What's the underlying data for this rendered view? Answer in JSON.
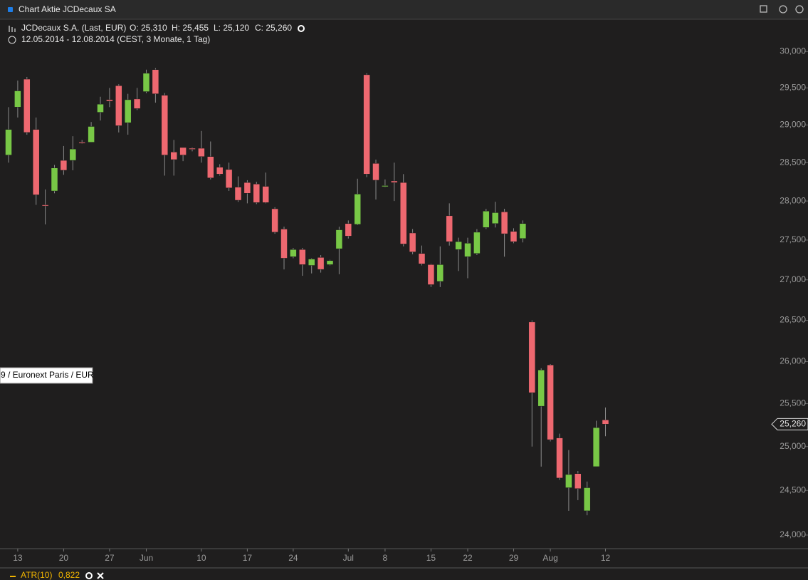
{
  "window_title": "Chart Aktie JCDecaux SA",
  "exchange_label": "9 / Euronext Paris / EUR",
  "indicator": {
    "name": "ATR(10)",
    "value": "0,822"
  },
  "chart_data": {
    "type": "candlestick",
    "title": "JCDecaux S.A. (Last, EUR)",
    "ohlc_labels": [
      "O: 25,310",
      "H: 25,455",
      "L: 25,120",
      "C: 25,260"
    ],
    "subtitle": "12.05.2014 - 12.08.2014 (CEST, 3 Monate, 1 Tag)",
    "categories": [
      null,
      "13",
      null,
      null,
      null,
      null,
      "20",
      null,
      null,
      null,
      null,
      "27",
      null,
      null,
      null,
      "Jun",
      null,
      null,
      null,
      null,
      null,
      "10",
      null,
      null,
      null,
      null,
      "17",
      null,
      null,
      null,
      null,
      "24",
      null,
      null,
      null,
      null,
      null,
      "Jul",
      null,
      null,
      null,
      "8",
      null,
      null,
      null,
      null,
      "15",
      null,
      null,
      null,
      "22",
      null,
      null,
      null,
      null,
      "29",
      null,
      null,
      null,
      "Aug",
      null,
      null,
      null,
      null,
      null,
      "12"
    ],
    "open": [
      28.6,
      29.24,
      29.62,
      28.94,
      27.95,
      28.13,
      28.53,
      28.53,
      28.77,
      28.77,
      29.17,
      29.34,
      29.53,
      29.03,
      29.35,
      29.45,
      29.75,
      29.4,
      28.64,
      28.7,
      28.69,
      28.69,
      28.58,
      28.44,
      28.41,
      28.18,
      28.24,
      28.22,
      28.19,
      27.9,
      27.64,
      27.29,
      27.38,
      27.18,
      27.28,
      27.19,
      27.39,
      27.71,
      27.7,
      29.68,
      28.49,
      28.19,
      28.26,
      28.24,
      27.59,
      27.33,
      27.19,
      26.98,
      27.81,
      27.38,
      27.29,
      27.33,
      27.66,
      27.71,
      27.86,
      27.61,
      27.52,
      26.48,
      25.47,
      25.96,
      25.1,
      24.53,
      24.69,
      24.27,
      24.77,
      25.31
    ],
    "high": [
      29.24,
      29.6,
      29.65,
      29.1,
      28.15,
      28.47,
      28.72,
      28.85,
      28.8,
      29.04,
      29.38,
      29.5,
      29.55,
      29.42,
      29.5,
      29.75,
      29.77,
      29.43,
      28.8,
      28.7,
      28.7,
      28.92,
      28.78,
      28.48,
      28.5,
      28.32,
      28.27,
      28.25,
      28.37,
      27.92,
      27.67,
      27.4,
      27.4,
      27.27,
      27.31,
      27.25,
      27.67,
      27.75,
      28.29,
      29.7,
      28.54,
      28.28,
      28.5,
      28.35,
      27.64,
      27.43,
      27.2,
      27.42,
      27.97,
      27.53,
      27.53,
      27.64,
      27.9,
      27.99,
      27.9,
      27.65,
      27.75,
      26.5,
      25.92,
      25.97,
      25.15,
      24.96,
      24.72,
      24.6,
      25.3,
      25.455
    ],
    "low": [
      28.5,
      29.1,
      28.87,
      27.95,
      27.7,
      28.1,
      28.34,
      28.4,
      28.75,
      28.77,
      29.06,
      29.24,
      28.9,
      28.87,
      29.2,
      29.43,
      29.3,
      28.33,
      28.33,
      28.52,
      28.65,
      28.5,
      28.28,
      28.33,
      28.13,
      27.99,
      27.97,
      27.96,
      27.97,
      27.58,
      27.13,
      27.27,
      27.05,
      27.08,
      27.09,
      27.18,
      27.07,
      27.52,
      27.69,
      28.31,
      28.02,
      28.18,
      28.0,
      27.42,
      27.32,
      27.18,
      26.91,
      26.91,
      27.43,
      27.11,
      27.02,
      27.31,
      27.64,
      27.66,
      27.29,
      27.46,
      27.47,
      25.0,
      24.77,
      25.06,
      24.62,
      24.27,
      24.39,
      24.22,
      24.77,
      25.12
    ],
    "close": [
      28.94,
      29.46,
      28.9,
      28.08,
      27.94,
      28.43,
      28.4,
      28.68,
      28.76,
      28.98,
      29.28,
      29.32,
      28.99,
      29.34,
      29.22,
      29.7,
      29.42,
      28.6,
      28.54,
      28.6,
      28.68,
      28.58,
      28.3,
      28.35,
      28.17,
      28.01,
      28.1,
      27.98,
      27.98,
      27.6,
      27.27,
      27.38,
      27.19,
      27.26,
      27.13,
      27.24,
      27.63,
      27.55,
      28.09,
      28.35,
      28.27,
      28.2,
      28.24,
      27.45,
      27.35,
      27.2,
      26.94,
      27.19,
      27.48,
      27.48,
      27.46,
      27.6,
      27.87,
      27.85,
      27.58,
      27.48,
      27.71,
      25.63,
      25.9,
      25.08,
      24.64,
      24.68,
      24.52,
      24.53,
      25.22,
      25.26
    ],
    "up_color": "#78c846",
    "down_color": "#ee6870",
    "log_scale": true,
    "ylim": [
      23.85,
      30.45
    ],
    "yticks": [
      {
        "value": 24,
        "label": "24,000"
      },
      {
        "value": 24.5,
        "label": "24,500"
      },
      {
        "value": 25,
        "label": "25,000"
      },
      {
        "value": 25.5,
        "label": "25,500"
      },
      {
        "value": 26,
        "label": "26,000"
      },
      {
        "value": 26.5,
        "label": "26,500"
      },
      {
        "value": 27,
        "label": "27,000"
      },
      {
        "value": 27.5,
        "label": "27,500"
      },
      {
        "value": 28,
        "label": "28,000"
      },
      {
        "value": 28.5,
        "label": "28,500"
      },
      {
        "value": 29,
        "label": "29,000"
      },
      {
        "value": 29.5,
        "label": "29,500"
      },
      {
        "value": 30,
        "label": "30,000"
      }
    ],
    "grid": false,
    "last_price": 25.26,
    "last_price_label": "25,260"
  }
}
